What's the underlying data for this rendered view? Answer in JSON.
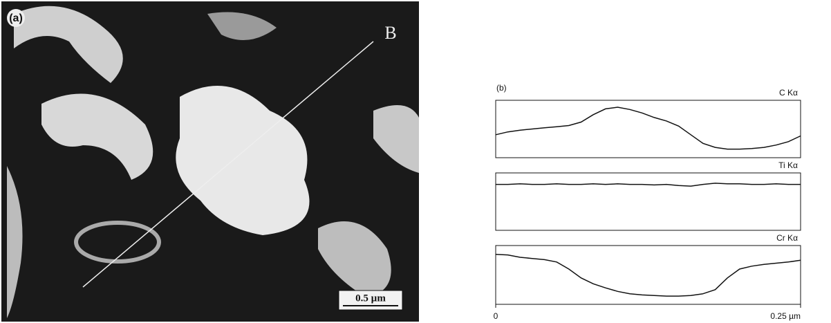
{
  "panel_a": {
    "label": "(a)",
    "marker": "B",
    "scale_bar": "0.5 µm"
  },
  "chart_data": {
    "type": "line",
    "label": "(b)",
    "x": [
      0,
      0.01,
      0.02,
      0.03,
      0.04,
      0.05,
      0.06,
      0.07,
      0.08,
      0.09,
      0.1,
      0.11,
      0.12,
      0.13,
      0.14,
      0.15,
      0.16,
      0.17,
      0.18,
      0.19,
      0.2,
      0.21,
      0.22,
      0.23,
      0.24,
      0.25
    ],
    "xlim": [
      0,
      0.25
    ],
    "xticks": [
      {
        "value": 0,
        "label": "0"
      },
      {
        "value": 0.25,
        "label": "0.25 µm"
      }
    ],
    "ylim": [
      0,
      100
    ],
    "series": [
      {
        "name": "C Kα",
        "color": "#111111",
        "values": [
          40,
          45,
          48,
          50,
          52,
          54,
          56,
          62,
          75,
          85,
          88,
          84,
          78,
          70,
          64,
          55,
          40,
          25,
          18,
          15,
          15,
          16,
          18,
          22,
          28,
          38
        ]
      },
      {
        "name": "Ti Kα",
        "color": "#111111",
        "values": [
          80,
          80,
          81,
          80,
          80,
          81,
          80,
          80,
          81,
          80,
          81,
          80,
          80,
          79,
          80,
          78,
          77,
          80,
          82,
          81,
          81,
          80,
          80,
          81,
          80,
          80
        ]
      },
      {
        "name": "Cr Kα",
        "color": "#111111",
        "values": [
          85,
          84,
          80,
          78,
          76,
          72,
          60,
          45,
          35,
          28,
          22,
          18,
          16,
          15,
          14,
          14,
          15,
          18,
          25,
          45,
          60,
          65,
          68,
          70,
          72,
          75
        ]
      }
    ]
  }
}
